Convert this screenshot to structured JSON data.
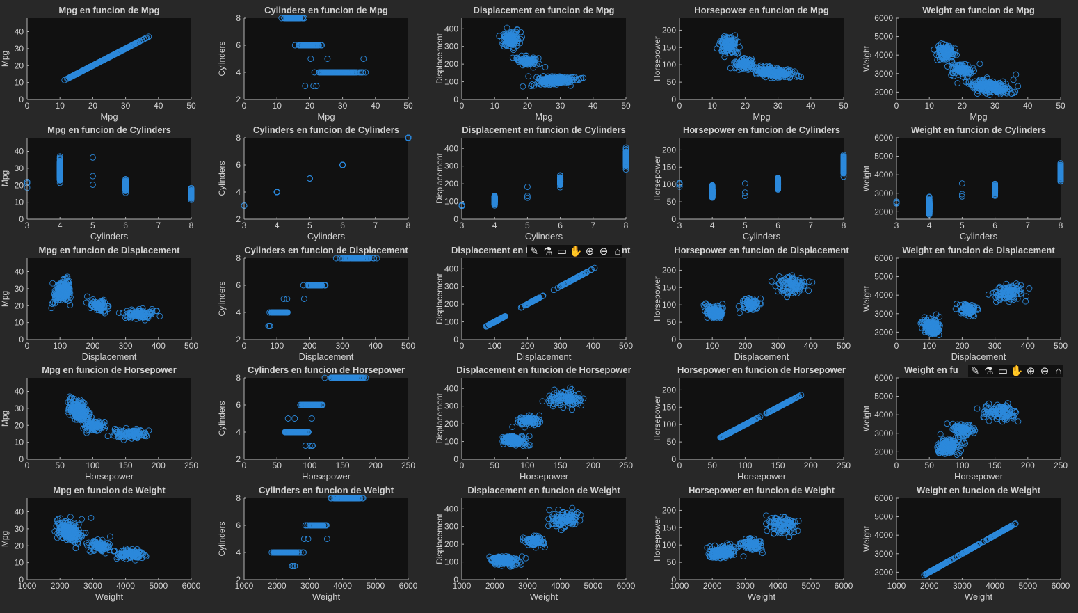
{
  "figure": {
    "background": "#282828",
    "axes_background": "#111111",
    "axis_color": "#b4b4b4",
    "text_color": "#d2d2d2",
    "marker_color": "#2c89db",
    "grid": false,
    "legend": "none"
  },
  "toolbar": {
    "icons": [
      "brush-icon",
      "data-tips-icon",
      "restore-view-icon",
      "pan-icon",
      "zoom-in-icon",
      "zoom-out-icon",
      "home-icon"
    ]
  },
  "chart_data": [
    {
      "type": "scatter",
      "title": "Mpg en funcion de Mpg",
      "xlabel": "Mpg",
      "ylabel": "Mpg",
      "xlim": [
        0,
        50
      ],
      "ylim": [
        0,
        48
      ],
      "xticks": [
        0,
        10,
        20,
        30,
        40,
        50
      ],
      "yticks": [
        0,
        10,
        20,
        30,
        40
      ],
      "data": "auto"
    },
    {
      "type": "scatter",
      "title": "Cylinders en funcion de Mpg",
      "xlabel": "Mpg",
      "ylabel": "Cylinders",
      "xlim": [
        0,
        50
      ],
      "ylim": [
        2,
        8
      ],
      "xticks": [
        0,
        10,
        20,
        30,
        40,
        50
      ],
      "yticks": [
        2,
        4,
        6,
        8
      ],
      "data": "auto"
    },
    {
      "type": "scatter",
      "title": "Displacement en funcion de Mpg",
      "xlabel": "Mpg",
      "ylabel": "Displacement",
      "xlim": [
        0,
        50
      ],
      "ylim": [
        0,
        460
      ],
      "xticks": [
        0,
        10,
        20,
        30,
        40,
        50
      ],
      "yticks": [
        0,
        100,
        200,
        300,
        400
      ],
      "data": "auto"
    },
    {
      "type": "scatter",
      "title": "Horsepower en funcion de Mpg",
      "xlabel": "Mpg",
      "ylabel": "Horsepower",
      "xlim": [
        0,
        50
      ],
      "ylim": [
        0,
        235
      ],
      "xticks": [
        0,
        10,
        20,
        30,
        40,
        50
      ],
      "yticks": [
        0,
        50,
        100,
        150,
        200
      ],
      "data": "auto"
    },
    {
      "type": "scatter",
      "title": "Weight en funcion de Mpg",
      "xlabel": "Mpg",
      "ylabel": "Weight",
      "xlim": [
        0,
        50
      ],
      "ylim": [
        1600,
        6000
      ],
      "xticks": [
        0,
        10,
        20,
        30,
        40,
        50
      ],
      "yticks": [
        2000,
        3000,
        4000,
        5000,
        6000
      ],
      "data": "auto"
    },
    {
      "type": "scatter",
      "title": "Mpg en funcion de Cylinders",
      "xlabel": "Cylinders",
      "ylabel": "Mpg",
      "xlim": [
        3,
        8
      ],
      "ylim": [
        0,
        48
      ],
      "xticks": [
        3,
        4,
        5,
        6,
        7,
        8
      ],
      "yticks": [
        0,
        10,
        20,
        30,
        40
      ],
      "data": "auto"
    },
    {
      "type": "scatter",
      "title": "Cylinders en funcion de Cylinders",
      "xlabel": "Cylinders",
      "ylabel": "Cylinders",
      "xlim": [
        3,
        8
      ],
      "ylim": [
        2,
        8
      ],
      "xticks": [
        3,
        4,
        5,
        6,
        7,
        8
      ],
      "yticks": [
        2,
        4,
        6,
        8
      ],
      "data": "auto"
    },
    {
      "type": "scatter",
      "title": "Displacement en funcion de Cylinders",
      "xlabel": "Cylinders",
      "ylabel": "Displacement",
      "xlim": [
        3,
        8
      ],
      "ylim": [
        0,
        460
      ],
      "xticks": [
        3,
        4,
        5,
        6,
        7,
        8
      ],
      "yticks": [
        0,
        100,
        200,
        300,
        400
      ],
      "data": "auto"
    },
    {
      "type": "scatter",
      "title": "Horsepower en funcion de Cylinders",
      "xlabel": "Cylinders",
      "ylabel": "Horsepower",
      "xlim": [
        3,
        8
      ],
      "ylim": [
        0,
        235
      ],
      "xticks": [
        3,
        4,
        5,
        6,
        7,
        8
      ],
      "yticks": [
        0,
        50,
        100,
        150,
        200
      ],
      "data": "auto"
    },
    {
      "type": "scatter",
      "title": "Weight en funcion de Cylinders",
      "xlabel": "Cylinders",
      "ylabel": "Weight",
      "xlim": [
        3,
        8
      ],
      "ylim": [
        1600,
        6000
      ],
      "xticks": [
        3,
        4,
        5,
        6,
        7,
        8
      ],
      "yticks": [
        2000,
        3000,
        4000,
        5000,
        6000
      ],
      "data": "auto"
    },
    {
      "type": "scatter",
      "title": "Mpg en funcion de Displacement",
      "xlabel": "Displacement",
      "ylabel": "Mpg",
      "xlim": [
        0,
        500
      ],
      "ylim": [
        0,
        48
      ],
      "xticks": [
        0,
        100,
        200,
        300,
        400,
        500
      ],
      "yticks": [
        0,
        10,
        20,
        30,
        40
      ],
      "data": "auto"
    },
    {
      "type": "scatter",
      "title": "Cylinders en funcion de Displacement",
      "xlabel": "Displacement",
      "ylabel": "Cylinders",
      "xlim": [
        0,
        500
      ],
      "ylim": [
        2,
        8
      ],
      "xticks": [
        0,
        100,
        200,
        300,
        400,
        500
      ],
      "yticks": [
        2,
        4,
        6,
        8
      ],
      "data": "auto"
    },
    {
      "type": "scatter",
      "title": "Displacement en f",
      "xlabel": "Displacement",
      "ylabel": "Displacement",
      "xlim": [
        0,
        500
      ],
      "ylim": [
        0,
        460
      ],
      "xticks": [
        0,
        100,
        200,
        300,
        400,
        500
      ],
      "yticks": [
        0,
        100,
        200,
        300,
        400
      ],
      "data": "auto",
      "toolbar": true,
      "title_tail": "nt"
    },
    {
      "type": "scatter",
      "title": "Horsepower en funcion de Displacement",
      "xlabel": "Displacement",
      "ylabel": "Horsepower",
      "xlim": [
        0,
        500
      ],
      "ylim": [
        0,
        235
      ],
      "xticks": [
        0,
        100,
        200,
        300,
        400,
        500
      ],
      "yticks": [
        0,
        50,
        100,
        150,
        200
      ],
      "data": "auto"
    },
    {
      "type": "scatter",
      "title": "Weight en funcion de Displacement",
      "xlabel": "Displacement",
      "ylabel": "Weight",
      "xlim": [
        0,
        500
      ],
      "ylim": [
        1600,
        6000
      ],
      "xticks": [
        0,
        100,
        200,
        300,
        400,
        500
      ],
      "yticks": [
        2000,
        3000,
        4000,
        5000,
        6000
      ],
      "data": "auto"
    },
    {
      "type": "scatter",
      "title": "Mpg en funcion de Horsepower",
      "xlabel": "Horsepower",
      "ylabel": "Mpg",
      "xlim": [
        0,
        250
      ],
      "ylim": [
        0,
        48
      ],
      "xticks": [
        0,
        50,
        100,
        150,
        200,
        250
      ],
      "yticks": [
        0,
        10,
        20,
        30,
        40
      ],
      "data": "auto"
    },
    {
      "type": "scatter",
      "title": "Cylinders en funcion de Horsepower",
      "xlabel": "Horsepower",
      "ylabel": "Cylinders",
      "xlim": [
        0,
        250
      ],
      "ylim": [
        2,
        8
      ],
      "xticks": [
        0,
        50,
        100,
        150,
        200,
        250
      ],
      "yticks": [
        2,
        4,
        6,
        8
      ],
      "data": "auto"
    },
    {
      "type": "scatter",
      "title": "Displacement en funcion de Horsepower",
      "xlabel": "Horsepower",
      "ylabel": "Displacement",
      "xlim": [
        0,
        250
      ],
      "ylim": [
        0,
        460
      ],
      "xticks": [
        0,
        50,
        100,
        150,
        200,
        250
      ],
      "yticks": [
        0,
        100,
        200,
        300,
        400
      ],
      "data": "auto"
    },
    {
      "type": "scatter",
      "title": "Horsepower en funcion de Horsepower",
      "xlabel": "Horsepower",
      "ylabel": "Horsepower",
      "xlim": [
        0,
        250
      ],
      "ylim": [
        0,
        235
      ],
      "xticks": [
        0,
        50,
        100,
        150,
        200,
        250
      ],
      "yticks": [
        0,
        50,
        100,
        150,
        200
      ],
      "data": "auto"
    },
    {
      "type": "scatter",
      "title": "Weight en fu",
      "xlabel": "Horsepower",
      "ylabel": "Weight",
      "xlim": [
        0,
        250
      ],
      "ylim": [
        1600,
        6000
      ],
      "xticks": [
        0,
        50,
        100,
        150,
        200,
        250
      ],
      "yticks": [
        2000,
        3000,
        4000,
        5000,
        6000
      ],
      "data": "auto",
      "toolbar": true
    },
    {
      "type": "scatter",
      "title": "Mpg en funcion de Weight",
      "xlabel": "Weight",
      "ylabel": "Mpg",
      "xlim": [
        1000,
        6000
      ],
      "ylim": [
        0,
        48
      ],
      "xticks": [
        1000,
        2000,
        3000,
        4000,
        5000,
        6000
      ],
      "yticks": [
        0,
        10,
        20,
        30,
        40
      ],
      "data": "auto"
    },
    {
      "type": "scatter",
      "title": "Cylinders en funcion de Weight",
      "xlabel": "Weight",
      "ylabel": "Cylinders",
      "xlim": [
        1000,
        6000
      ],
      "ylim": [
        2,
        8
      ],
      "xticks": [
        1000,
        2000,
        3000,
        4000,
        5000,
        6000
      ],
      "yticks": [
        2,
        4,
        6,
        8
      ],
      "data": "auto"
    },
    {
      "type": "scatter",
      "title": "Displacement en funcion de Weight",
      "xlabel": "Weight",
      "ylabel": "Displacement",
      "xlim": [
        1000,
        6000
      ],
      "ylim": [
        0,
        460
      ],
      "xticks": [
        1000,
        2000,
        3000,
        4000,
        5000,
        6000
      ],
      "yticks": [
        0,
        100,
        200,
        300,
        400
      ],
      "data": "auto"
    },
    {
      "type": "scatter",
      "title": "Horsepower en funcion de Weight",
      "xlabel": "Weight",
      "ylabel": "Horsepower",
      "xlim": [
        1000,
        6000
      ],
      "ylim": [
        0,
        235
      ],
      "xticks": [
        1000,
        2000,
        3000,
        4000,
        5000,
        6000
      ],
      "yticks": [
        0,
        50,
        100,
        150,
        200
      ],
      "data": "auto"
    },
    {
      "type": "scatter",
      "title": "Weight en funcion de Weight",
      "xlabel": "Weight",
      "ylabel": "Weight",
      "xlim": [
        1000,
        6000
      ],
      "ylim": [
        1600,
        6000
      ],
      "xticks": [
        1000,
        2000,
        3000,
        4000,
        5000,
        6000
      ],
      "yticks": [
        2000,
        3000,
        4000,
        5000,
        6000
      ],
      "data": "auto"
    }
  ]
}
